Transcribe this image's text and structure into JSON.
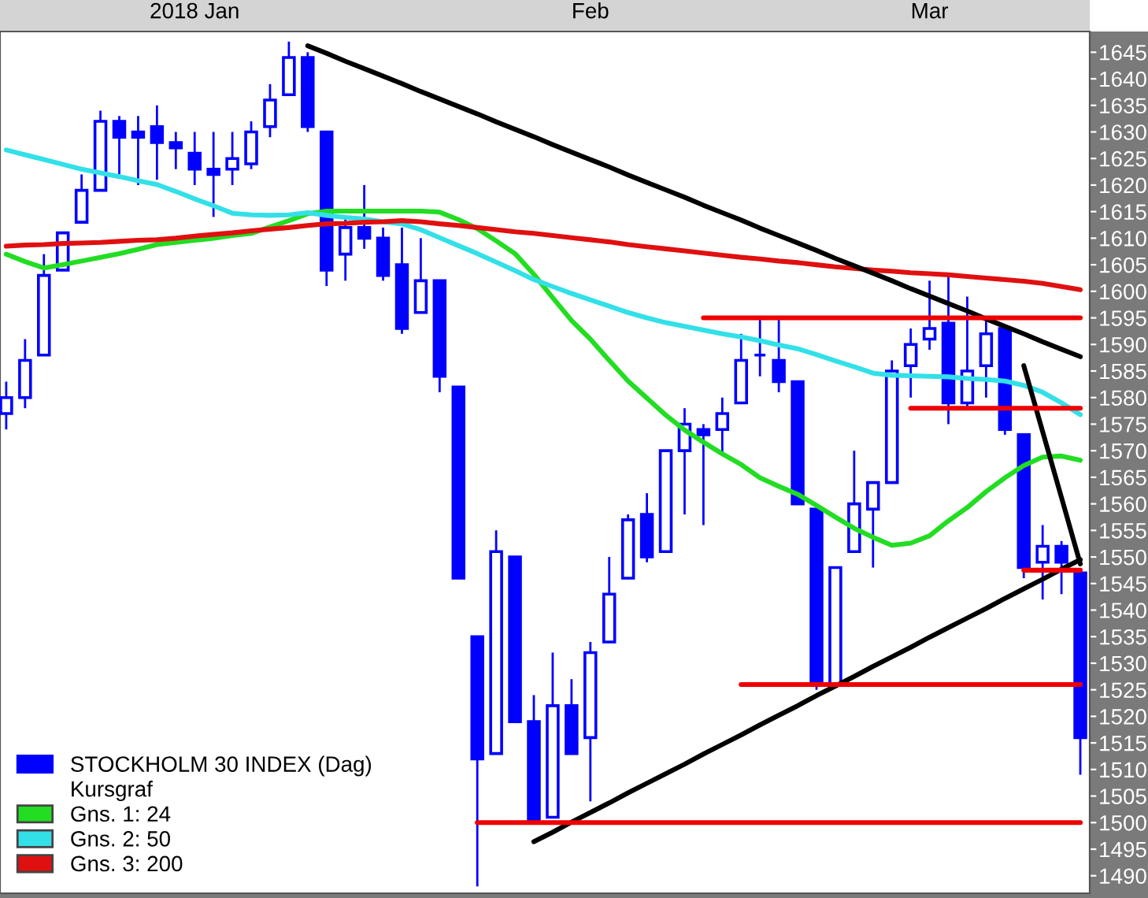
{
  "chart_data": {
    "type": "candlestick",
    "legend_title": "Kursgraf",
    "categories": [
      null,
      null,
      null,
      null,
      null,
      null,
      null,
      null,
      null,
      null,
      "2018 Jan",
      null,
      null,
      null,
      null,
      null,
      null,
      null,
      null,
      null,
      null,
      null,
      null,
      null,
      null,
      null,
      null,
      null,
      null,
      null,
      null,
      "Feb",
      null,
      null,
      null,
      null,
      null,
      null,
      null,
      null,
      null,
      null,
      null,
      null,
      null,
      null,
      null,
      null,
      null,
      "Mar",
      null,
      null,
      null,
      null,
      null,
      null,
      null,
      null
    ],
    "ylim": [
      1486.7,
      1648.9
    ],
    "yticks": [
      1490,
      1495,
      1500,
      1505,
      1510,
      1515,
      1520,
      1525,
      1530,
      1535,
      1540,
      1545,
      1550,
      1555,
      1560,
      1565,
      1570,
      1575,
      1580,
      1585,
      1590,
      1595,
      1600,
      1605,
      1610,
      1615,
      1620,
      1625,
      1630,
      1635,
      1640,
      1645
    ],
    "legend": "bottom left",
    "series": [
      {
        "name": "STOCKHOLM 30 INDEX (Dag)",
        "color": "#0000ff",
        "ohlc": [
          [
            1577,
            1583,
            1574,
            1580
          ],
          [
            1580,
            1591,
            1578,
            1587
          ],
          [
            1588,
            1607,
            1588,
            1603
          ],
          [
            1604,
            1611,
            1604,
            1611
          ],
          [
            1613,
            1622,
            1613,
            1619
          ],
          [
            1619,
            1634,
            1619,
            1632
          ],
          [
            1632,
            1633,
            1622,
            1629
          ],
          [
            1630,
            1633,
            1620,
            1629
          ],
          [
            1631,
            1635,
            1621,
            1628
          ],
          [
            1628,
            1630,
            1623,
            1627
          ],
          [
            1626,
            1630,
            1620,
            1623
          ],
          [
            1623,
            1630,
            1614,
            1622
          ],
          [
            1623,
            1630,
            1620,
            1625
          ],
          [
            1624,
            1632,
            1623,
            1630
          ],
          [
            1631,
            1639,
            1629,
            1636
          ],
          [
            1637,
            1647,
            1637,
            1644
          ],
          [
            1644,
            1645,
            1630,
            1631
          ],
          [
            1630,
            1630,
            1601,
            1604
          ],
          [
            1607,
            1614,
            1602,
            1612
          ],
          [
            1612,
            1620,
            1608,
            1610
          ],
          [
            1610,
            1612,
            1602,
            1603
          ],
          [
            1605,
            1612,
            1592,
            1593
          ],
          [
            1596,
            1610,
            1596,
            1602
          ],
          [
            1602,
            1602,
            1581,
            1584
          ],
          [
            1582,
            1582,
            1546,
            1546
          ],
          [
            1535,
            1535,
            1488,
            1512
          ],
          [
            1513,
            1555,
            1513,
            1551
          ],
          [
            1550,
            1550,
            1519,
            1519
          ],
          [
            1519,
            1524,
            1500,
            1500
          ],
          [
            1501,
            1532,
            1501,
            1522
          ],
          [
            1522,
            1527,
            1513,
            1513
          ],
          [
            1516,
            1534,
            1504,
            1532
          ],
          [
            1534,
            1550,
            1534,
            1543
          ],
          [
            1546,
            1558,
            1546,
            1557
          ],
          [
            1558,
            1562,
            1549,
            1550
          ],
          [
            1551,
            1570,
            1551,
            1570
          ],
          [
            1570,
            1578,
            1558,
            1575
          ],
          [
            1574,
            1575,
            1556,
            1573
          ],
          [
            1574,
            1580,
            1569,
            1577
          ],
          [
            1579,
            1592,
            1579,
            1587
          ],
          [
            1588,
            1595,
            1584,
            1588
          ],
          [
            1587,
            1595,
            1581,
            1583
          ],
          [
            1583,
            1583,
            1560,
            1560
          ],
          [
            1559,
            1559,
            1525,
            1526
          ],
          [
            1526,
            1548,
            1526,
            1548
          ],
          [
            1551,
            1570,
            1551,
            1560
          ],
          [
            1559,
            1564,
            1548,
            1564
          ],
          [
            1564,
            1587,
            1564,
            1585
          ],
          [
            1586,
            1593,
            1580,
            1590
          ],
          [
            1591,
            1602,
            1589,
            1593
          ],
          [
            1594,
            1603,
            1575,
            1579
          ],
          [
            1579,
            1599,
            1578,
            1585
          ],
          [
            1586,
            1595,
            1580,
            1592
          ],
          [
            1593,
            1593,
            1573,
            1574
          ],
          [
            1573,
            1573,
            1546,
            1548
          ],
          [
            1549,
            1556,
            1542,
            1552
          ],
          [
            1552,
            1553,
            1543,
            1549
          ],
          [
            1547,
            1547,
            1509,
            1516
          ]
        ]
      },
      {
        "type": "line",
        "name": "Gns. 1: 24",
        "color": "#22dd22",
        "values": [
          1607.0,
          1605.6,
          1604.4,
          1605.0,
          1605.7,
          1606.4,
          1607.1,
          1607.9,
          1608.8,
          1609.2,
          1609.6,
          1610.0,
          1610.5,
          1610.9,
          1612.1,
          1613.3,
          1614.6,
          1615.1,
          1615.1,
          1615.1,
          1615.1,
          1615.1,
          1615.1,
          1614.9,
          1613.5,
          1611.8,
          1609.5,
          1607.1,
          1603.2,
          1598.8,
          1594.5,
          1591.0,
          1587.0,
          1583.1,
          1579.9,
          1576.7,
          1573.9,
          1571.6,
          1569.4,
          1567.4,
          1564.9,
          1563.3,
          1561.8,
          1559.7,
          1557.5,
          1555.4,
          1553.7,
          1552.2,
          1552.6,
          1554.0,
          1556.8,
          1559.3,
          1562.3,
          1564.9,
          1567.2,
          1568.8,
          1569.0,
          1568.2
        ]
      },
      {
        "type": "line",
        "name": "Gns. 2: 50",
        "color": "#33e0e8",
        "values": [
          1626.6,
          1625.7,
          1624.8,
          1623.9,
          1623.0,
          1622.3,
          1621.6,
          1620.8,
          1620.1,
          1618.8,
          1617.4,
          1616.1,
          1614.7,
          1614.4,
          1614.3,
          1614.4,
          1614.8,
          1614.3,
          1613.9,
          1613.6,
          1613.1,
          1612.7,
          1611.6,
          1610.1,
          1608.6,
          1607.1,
          1605.5,
          1603.9,
          1602.2,
          1600.9,
          1599.6,
          1598.4,
          1597.2,
          1596.0,
          1595.0,
          1594.1,
          1593.4,
          1592.7,
          1592.0,
          1591.4,
          1590.7,
          1589.9,
          1589.2,
          1588.1,
          1586.9,
          1585.8,
          1584.6,
          1584.2,
          1584.1,
          1584.0,
          1583.9,
          1583.6,
          1583.4,
          1583.1,
          1582.3,
          1581.0,
          1579.0,
          1576.8
        ]
      },
      {
        "type": "line",
        "name": "Gns. 3: 200",
        "color": "#e01010",
        "values": [
          1608.5,
          1608.7,
          1608.8,
          1609.0,
          1609.1,
          1609.2,
          1609.4,
          1609.6,
          1609.7,
          1610.0,
          1610.4,
          1610.7,
          1611.0,
          1611.4,
          1611.7,
          1612.0,
          1612.4,
          1612.7,
          1612.8,
          1613.0,
          1613.1,
          1613.3,
          1613.1,
          1612.7,
          1612.4,
          1612.0,
          1611.6,
          1611.2,
          1610.9,
          1610.5,
          1610.1,
          1609.7,
          1609.3,
          1608.8,
          1608.4,
          1608.0,
          1607.6,
          1607.2,
          1606.8,
          1606.4,
          1606.1,
          1605.7,
          1605.4,
          1605.0,
          1604.6,
          1604.3,
          1604.0,
          1603.8,
          1603.5,
          1603.3,
          1603.1,
          1602.8,
          1602.5,
          1602.2,
          1601.9,
          1601.5,
          1600.9,
          1600.3
        ]
      },
      {
        "type": "line",
        "color": "#000000",
        "values": [
          null,
          null,
          null,
          null,
          null,
          null,
          null,
          null,
          null,
          null,
          null,
          null,
          null,
          null,
          null,
          null,
          1646.2,
          1644.8,
          1643.3,
          1641.9,
          1640.5,
          1639.1,
          1637.6,
          1636.2,
          1634.8,
          1633.4,
          1631.9,
          1630.5,
          1629.1,
          1627.6,
          1626.2,
          1624.8,
          1623.4,
          1621.9,
          1620.5,
          1619.1,
          1617.7,
          1616.2,
          1614.8,
          1613.4,
          1611.9,
          1610.5,
          1609.1,
          1607.7,
          1606.2,
          1604.8,
          1603.4,
          1602.0,
          1600.5,
          1599.1,
          1597.7,
          1596.3,
          1594.8,
          1593.4,
          1592.0,
          1590.5,
          1589.1,
          1587.7
        ]
      },
      {
        "type": "line",
        "color": "#000000",
        "values": [
          null,
          null,
          null,
          null,
          null,
          null,
          null,
          null,
          null,
          null,
          null,
          null,
          null,
          null,
          null,
          null,
          null,
          null,
          null,
          null,
          null,
          null,
          null,
          null,
          null,
          null,
          null,
          null,
          1496.4,
          1498.2,
          1500.1,
          1501.9,
          1503.7,
          1505.6,
          1507.4,
          1509.2,
          1511.0,
          1512.9,
          1514.7,
          1516.5,
          1518.4,
          1520.2,
          1522.0,
          1523.9,
          1525.7,
          1527.5,
          1529.4,
          1531.2,
          1533.0,
          1534.9,
          1536.7,
          1538.5,
          1540.3,
          1542.2,
          1544.0,
          1545.8,
          1547.7,
          1549.5
        ]
      },
      {
        "type": "line",
        "color": "#000000",
        "values": [
          null,
          null,
          null,
          null,
          null,
          null,
          null,
          null,
          null,
          null,
          null,
          null,
          null,
          null,
          null,
          null,
          null,
          null,
          null,
          null,
          null,
          null,
          null,
          null,
          null,
          null,
          null,
          null,
          null,
          null,
          null,
          null,
          null,
          null,
          null,
          null,
          null,
          null,
          null,
          null,
          null,
          null,
          null,
          null,
          null,
          null,
          null,
          null,
          null,
          null,
          null,
          null,
          null,
          null,
          1586.0,
          1573.6,
          1561.2,
          1548.7
        ]
      },
      {
        "type": "line",
        "color": "#ee0000",
        "values": [
          null,
          null,
          null,
          null,
          null,
          null,
          null,
          null,
          null,
          null,
          null,
          null,
          null,
          null,
          null,
          null,
          null,
          null,
          null,
          null,
          null,
          null,
          null,
          null,
          null,
          null,
          null,
          null,
          null,
          null,
          null,
          null,
          null,
          null,
          null,
          null,
          null,
          1595,
          1595,
          1595,
          1595,
          1595,
          1595,
          1595,
          1595,
          1595,
          1595,
          1595,
          1595,
          1595,
          1595,
          1595,
          1595,
          1595,
          1595,
          1595,
          1595,
          1595
        ]
      },
      {
        "type": "line",
        "color": "#ee0000",
        "values": [
          null,
          null,
          null,
          null,
          null,
          null,
          null,
          null,
          null,
          null,
          null,
          null,
          null,
          null,
          null,
          null,
          null,
          null,
          null,
          null,
          null,
          null,
          null,
          null,
          null,
          null,
          null,
          null,
          null,
          null,
          null,
          null,
          null,
          null,
          null,
          null,
          null,
          null,
          null,
          null,
          null,
          null,
          null,
          null,
          null,
          null,
          null,
          null,
          1578,
          1578,
          1578,
          1578,
          1578,
          1578,
          1578,
          1578,
          1578,
          1578
        ]
      },
      {
        "type": "line",
        "color": "#ee0000",
        "values": [
          null,
          null,
          null,
          null,
          null,
          null,
          null,
          null,
          null,
          null,
          null,
          null,
          null,
          null,
          null,
          null,
          null,
          null,
          null,
          null,
          null,
          null,
          null,
          null,
          null,
          null,
          null,
          null,
          null,
          null,
          null,
          null,
          null,
          null,
          null,
          null,
          null,
          null,
          null,
          null,
          null,
          null,
          null,
          null,
          null,
          null,
          null,
          null,
          null,
          null,
          null,
          null,
          null,
          null,
          1547.5,
          1547.5,
          1547.5,
          1547.5
        ]
      },
      {
        "type": "line",
        "color": "#ee0000",
        "values": [
          null,
          null,
          null,
          null,
          null,
          null,
          null,
          null,
          null,
          null,
          null,
          null,
          null,
          null,
          null,
          null,
          null,
          null,
          null,
          null,
          null,
          null,
          null,
          null,
          null,
          null,
          null,
          null,
          null,
          null,
          null,
          null,
          null,
          null,
          null,
          null,
          null,
          null,
          null,
          1526,
          1526,
          1526,
          1526,
          1526,
          1526,
          1526,
          1526,
          1526,
          1526,
          1526,
          1526,
          1526,
          1526,
          1526,
          1526,
          1526,
          1526,
          1526
        ]
      },
      {
        "type": "line",
        "color": "#ee0000",
        "values": [
          null,
          null,
          null,
          null,
          null,
          null,
          null,
          null,
          null,
          null,
          null,
          null,
          null,
          null,
          null,
          null,
          null,
          null,
          null,
          null,
          null,
          null,
          null,
          null,
          null,
          1500,
          1500,
          1500,
          1500,
          1500,
          1500,
          1500,
          1500,
          1500,
          1500,
          1500,
          1500,
          1500,
          1500,
          1500,
          1500,
          1500,
          1500,
          1500,
          1500,
          1500,
          1500,
          1500,
          1500,
          1500,
          1500,
          1500,
          1500,
          1500,
          1500,
          1500,
          1500,
          1500
        ]
      }
    ]
  }
}
